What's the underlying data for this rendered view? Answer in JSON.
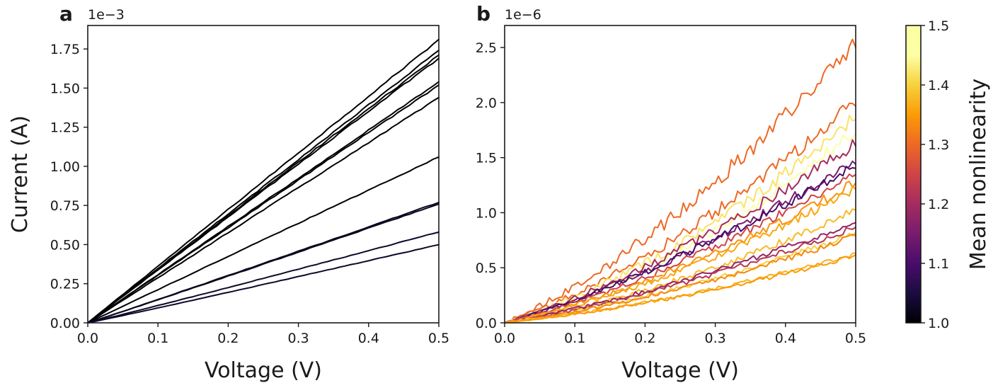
{
  "chart_data": [
    {
      "type": "line",
      "panel_label": "a",
      "offset_label": "1e−3",
      "xlabel": "Voltage (V)",
      "ylabel": "Current (A)",
      "xlim": [
        0.0,
        0.5
      ],
      "ylim": [
        0.0,
        1.9
      ],
      "x_ticks": [
        "0.0",
        "0.1",
        "0.2",
        "0.3",
        "0.4",
        "0.5"
      ],
      "y_ticks": [
        "0.00",
        "0.25",
        "0.50",
        "0.75",
        "1.00",
        "1.25",
        "1.50",
        "1.75"
      ],
      "y_unit_scale": 0.001,
      "series": [
        {
          "end_current": 1.81,
          "nonlinearity": 1.0
        },
        {
          "end_current": 1.74,
          "nonlinearity": 1.0
        },
        {
          "end_current": 1.71,
          "nonlinearity": 1.0
        },
        {
          "end_current": 1.69,
          "nonlinearity": 1.0
        },
        {
          "end_current": 1.54,
          "nonlinearity": 1.0
        },
        {
          "end_current": 1.52,
          "nonlinearity": 1.0
        },
        {
          "end_current": 1.44,
          "nonlinearity": 1.0
        },
        {
          "end_current": 1.06,
          "nonlinearity": 1.0
        },
        {
          "end_current": 0.77,
          "nonlinearity": 1.02
        },
        {
          "end_current": 0.76,
          "nonlinearity": 1.02
        },
        {
          "end_current": 0.58,
          "nonlinearity": 1.03
        },
        {
          "end_current": 0.5,
          "nonlinearity": 1.03
        }
      ]
    },
    {
      "type": "line",
      "panel_label": "b",
      "offset_label": "1e−6",
      "xlabel": "Voltage (V)",
      "ylabel": "",
      "xlim": [
        0.0,
        0.5
      ],
      "ylim": [
        0.0,
        2.7
      ],
      "x_ticks": [
        "0.0",
        "0.1",
        "0.2",
        "0.3",
        "0.4",
        "0.5"
      ],
      "y_ticks": [
        "0.0",
        "0.5",
        "1.0",
        "1.5",
        "2.0",
        "2.5"
      ],
      "y_unit_scale": 1e-06,
      "series": [
        {
          "end_current": 2.56,
          "nonlinearity": 1.3
        },
        {
          "end_current": 2.01,
          "nonlinearity": 1.3
        },
        {
          "end_current": 1.88,
          "nonlinearity": 1.42
        },
        {
          "end_current": 1.75,
          "nonlinearity": 1.48
        },
        {
          "end_current": 1.63,
          "nonlinearity": 1.2
        },
        {
          "end_current": 1.46,
          "nonlinearity": 1.15
        },
        {
          "end_current": 1.42,
          "nonlinearity": 1.1
        },
        {
          "end_current": 1.36,
          "nonlinearity": 1.25
        },
        {
          "end_current": 1.28,
          "nonlinearity": 1.34
        },
        {
          "end_current": 1.22,
          "nonlinearity": 1.36
        },
        {
          "end_current": 1.03,
          "nonlinearity": 1.38
        },
        {
          "end_current": 0.91,
          "nonlinearity": 1.18
        },
        {
          "end_current": 0.87,
          "nonlinearity": 1.22
        },
        {
          "end_current": 0.82,
          "nonlinearity": 1.4
        },
        {
          "end_current": 0.79,
          "nonlinearity": 1.33
        },
        {
          "end_current": 0.63,
          "nonlinearity": 1.37
        },
        {
          "end_current": 0.61,
          "nonlinearity": 1.35
        }
      ]
    }
  ],
  "colorbar": {
    "label": "Mean nonlinearity",
    "colormap": "inferno",
    "range": [
      1.0,
      1.5
    ],
    "ticks": [
      "1.0",
      "1.1",
      "1.2",
      "1.3",
      "1.4",
      "1.5"
    ]
  }
}
